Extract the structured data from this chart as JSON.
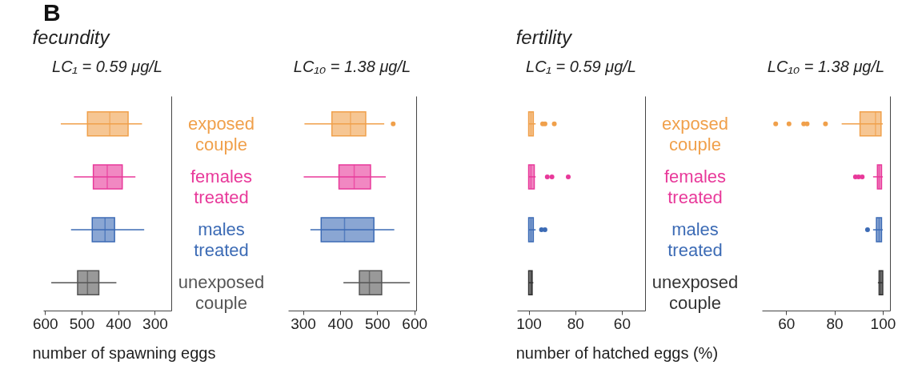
{
  "chart_data": [
    {
      "type": "box",
      "title": "fecundity",
      "subtitle": "LC₁ = 0.59 μg/L",
      "xlabel": "number of spawning eggs",
      "annotations": [
        "B"
      ],
      "orientation": "horizontal",
      "categories": [
        "exposed couple",
        "females treated",
        "males treated",
        "unexposed couple"
      ],
      "colors": [
        "#f0a04b",
        "#e8399a",
        "#3c6bb5",
        "#555555"
      ],
      "xlim": [
        605,
        255
      ],
      "xticks": [
        600,
        500,
        400,
        300
      ],
      "boxes": [
        {
          "low": 335,
          "q1": 373,
          "median": 423,
          "q3": 484,
          "high": 557
        },
        {
          "low": 353,
          "q1": 389,
          "median": 430,
          "q3": 468,
          "high": 521
        },
        {
          "low": 329,
          "q1": 410,
          "median": 436,
          "q3": 471,
          "high": 529
        },
        {
          "low": 405,
          "q1": 453,
          "median": 484,
          "q3": 511,
          "high": 583
        }
      ]
    },
    {
      "type": "box",
      "subtitle": "LC₁₀ = 1.38 μg/L",
      "orientation": "horizontal",
      "categories": [
        null,
        null,
        null,
        null
      ],
      "colors": [
        "#f0a04b",
        "#e8399a",
        "#3c6bb5",
        "#555555"
      ],
      "xlim": [
        260,
        605
      ],
      "xticks": [
        300,
        400,
        500,
        600
      ],
      "boxes": [
        {
          "low": 304,
          "q1": 378,
          "median": 428,
          "q3": 469,
          "high": 519,
          "outliers": [
            543
          ]
        },
        {
          "low": 302,
          "q1": 397,
          "median": 438,
          "q3": 482,
          "high": 523
        },
        {
          "low": 320,
          "q1": 349,
          "median": 412,
          "q3": 491,
          "high": 546
        },
        {
          "low": 409,
          "q1": 452,
          "median": 479,
          "q3": 512,
          "high": 588
        }
      ]
    },
    {
      "type": "box",
      "title": "fertility",
      "subtitle": "LC₁ = 0.59 μg/L",
      "xlabel": "number of hatched eggs (%)",
      "orientation": "horizontal",
      "categories": [
        "exposed couple",
        "females treated",
        "males treated",
        "unexposed couple"
      ],
      "colors": [
        "#f0a04b",
        "#e8399a",
        "#3c6bb5",
        "#333333"
      ],
      "xlim": [
        105,
        50
      ],
      "xticks": [
        100,
        80,
        60
      ],
      "boxes": [
        {
          "low": 97,
          "q1": 98,
          "median": 99,
          "q3": 100,
          "high": 100,
          "outliers": [
            94,
            93,
            89
          ]
        },
        {
          "low": 97,
          "q1": 97.6,
          "median": 99,
          "q3": 100,
          "high": 100,
          "outliers": [
            92,
            90,
            83
          ]
        },
        {
          "low": 97,
          "q1": 98,
          "median": 99,
          "q3": 100,
          "high": 100,
          "outliers": [
            94.5,
            93
          ]
        },
        {
          "low": 98,
          "q1": 98.5,
          "median": 99,
          "q3": 100,
          "high": 100
        }
      ]
    },
    {
      "type": "box",
      "subtitle": "LC₁₀ = 1.38 μg/L",
      "orientation": "horizontal",
      "categories": [
        null,
        null,
        null,
        null
      ],
      "colors": [
        "#f0a04b",
        "#e8399a",
        "#3c6bb5",
        "#333333"
      ],
      "xlim": [
        50,
        103
      ],
      "xticks": [
        60,
        80,
        100
      ],
      "boxes": [
        {
          "low": 83,
          "q1": 90.6,
          "median": 97,
          "q3": 99.3,
          "high": 100,
          "outliers": [
            55.7,
            61.2,
            67.3,
            68.7,
            76.3
          ]
        },
        {
          "low": 96,
          "q1": 97.8,
          "median": 98.5,
          "q3": 99.5,
          "high": 100,
          "outliers": [
            88.7,
            90,
            91.5
          ]
        },
        {
          "low": 96,
          "q1": 97.4,
          "median": 98.5,
          "q3": 99.5,
          "high": 100,
          "outliers": [
            93.7
          ]
        },
        {
          "low": 98,
          "q1": 98.5,
          "median": 99.2,
          "q3": 100,
          "high": 100
        }
      ]
    }
  ]
}
